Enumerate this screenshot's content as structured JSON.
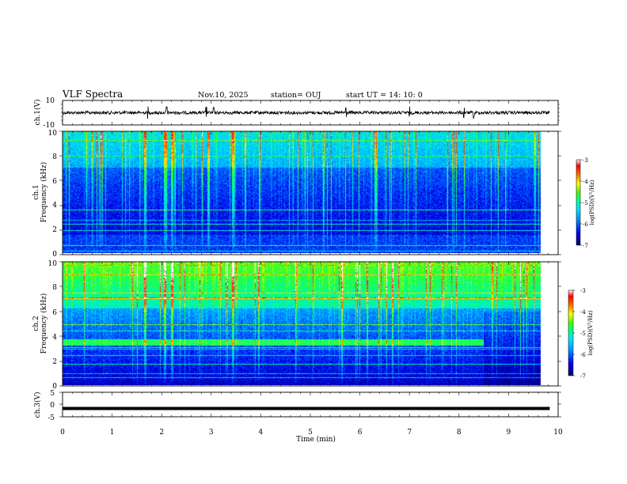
{
  "header": {
    "title": "VLF Spectra",
    "date": "Nov.10, 2025",
    "station": "station= OUJ",
    "start": "start  UT =   14: 10: 0"
  },
  "chart_data": {
    "type": "heatmap",
    "xlabel": "Time  (min)",
    "xlim": [
      0,
      10
    ],
    "xticks": [
      "0",
      "1",
      "2",
      "3",
      "4",
      "5",
      "6",
      "7",
      "8",
      "9",
      "10"
    ],
    "data_end_min": 9.83,
    "panels": [
      {
        "id": "ch1-waveform",
        "type": "line",
        "ylabel": "ch.1(V)",
        "ylim": [
          -10,
          10
        ],
        "yticks": [
          "10",
          "-10"
        ],
        "baseline": 0,
        "color": "#000000",
        "spikes_min": [
          1.72,
          2.1,
          2.9,
          3.05,
          5.72,
          7.0,
          8.1,
          8.3
        ]
      },
      {
        "id": "ch1-spectrogram",
        "type": "heatmap",
        "ylabel1": "ch.1",
        "ylabel2": "Frequency  (kHz)",
        "ylim": [
          0,
          10
        ],
        "yticks": [
          "0",
          "2",
          "4",
          "6",
          "8",
          "10"
        ],
        "colorbar": {
          "label": "log(PSD)(V²/Hz)",
          "range": [
            -7,
            -3
          ],
          "ticks": [
            "-3",
            "-4",
            "-5",
            "-6",
            "-7"
          ]
        },
        "events_min": [
          1.7,
          2.1,
          2.25,
          3.0,
          3.5
        ]
      },
      {
        "id": "ch2-spectrogram",
        "type": "heatmap",
        "ylabel1": "ch.2",
        "ylabel2": "Frequency  (kHz)",
        "ylim": [
          0,
          10
        ],
        "yticks": [
          "0",
          "2",
          "4",
          "6",
          "8",
          "10"
        ],
        "colorbar": {
          "label": "log(PSD)(V²/Hz)",
          "range": [
            -7,
            -3
          ],
          "ticks": [
            "-3",
            "-4",
            "-5",
            "-6",
            "-7"
          ]
        },
        "band_khz": [
          3.2,
          3.7
        ],
        "band_end_min": 8.65,
        "events_min": [
          1.7,
          2.1,
          2.25,
          3.5
        ]
      },
      {
        "id": "ch3-waveform",
        "type": "line",
        "ylabel": "ch.3(V)",
        "ylim": [
          -5,
          5
        ],
        "yticks": [
          "5",
          "0",
          "-5"
        ],
        "baseline": -1.6,
        "color": "#000000"
      }
    ]
  }
}
